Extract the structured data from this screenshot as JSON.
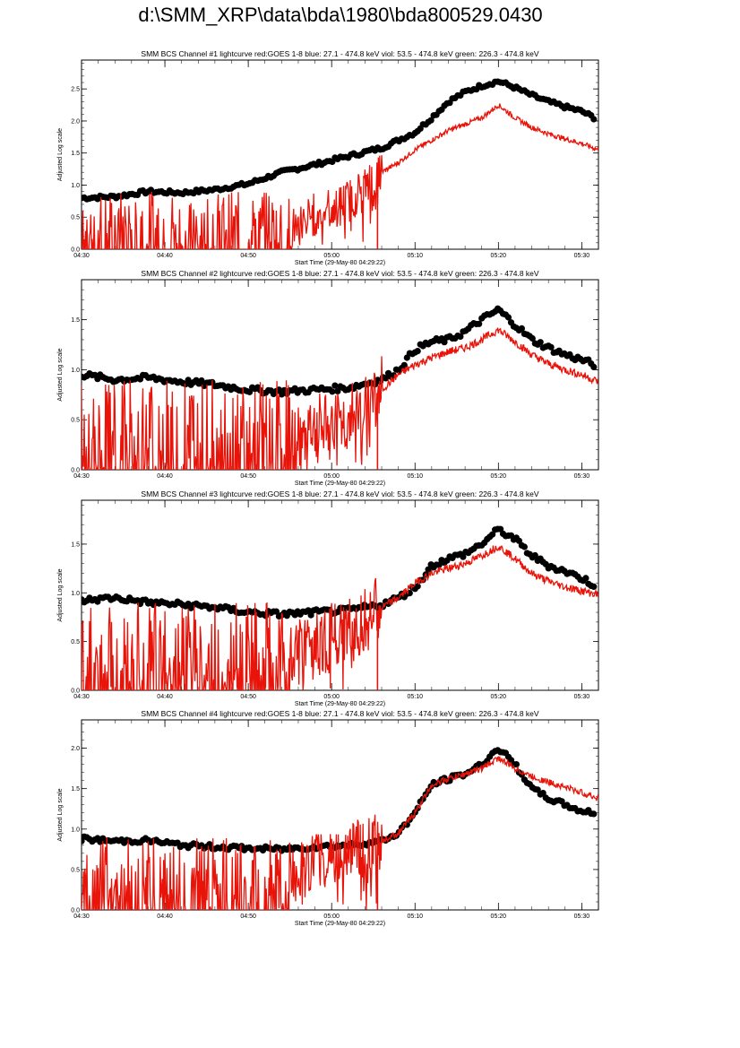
{
  "page": {
    "title": "d:\\SMM_XRP\\data\\bda\\1980\\bda800529.0430"
  },
  "colors": {
    "goes": "#e8140a",
    "bcs": "#000000",
    "axis": "#000000"
  },
  "chart_data": [
    {
      "type": "line",
      "title": "SMM BCS Channel #1 lightcurve  red:GOES 1-8  blue: 27.1 - 474.8 keV  viol: 53.5 - 474.8 keV  green: 226.3 - 474.8 keV",
      "xlabel": "Start Time (29-May-80 04:29:22)",
      "ylabel": "Adjusted Log scale",
      "xlim_min": [
        0,
        62
      ],
      "ylim": [
        0,
        2.95
      ],
      "yticks": [
        0.0,
        0.5,
        1.0,
        1.5,
        2.0,
        2.5
      ],
      "ytick_labels": [
        "0.0",
        "0.5",
        "1.0",
        "1.5",
        "2.0",
        "2.5"
      ],
      "xticks_min": [
        0,
        10,
        20,
        30,
        40,
        50,
        60
      ],
      "xtick_labels": [
        "04:30",
        "04:40",
        "04:50",
        "05:00",
        "05:10",
        "05:20",
        "05:30"
      ],
      "series": [
        {
          "style": "points",
          "color": "#000000",
          "x": [
            0,
            4,
            8,
            12,
            16,
            20,
            24,
            28,
            32,
            36,
            40,
            42,
            44,
            46,
            48,
            50,
            52,
            54,
            56,
            58,
            60,
            61.5
          ],
          "values": [
            0.8,
            0.82,
            0.9,
            0.88,
            0.93,
            1.02,
            1.2,
            1.32,
            1.45,
            1.58,
            1.82,
            2.05,
            2.3,
            2.45,
            2.55,
            2.62,
            2.52,
            2.4,
            2.3,
            2.22,
            2.15,
            2.05
          ]
        },
        {
          "style": "line",
          "color": "#e8140a",
          "x": [
            25,
            28,
            32,
            36,
            38,
            40,
            42,
            44,
            46,
            48,
            50,
            52,
            54,
            56,
            58,
            60,
            62
          ],
          "values": [
            0.3,
            0.55,
            0.75,
            1.2,
            1.35,
            1.55,
            1.7,
            1.85,
            1.95,
            2.05,
            2.25,
            2.05,
            1.9,
            1.8,
            1.72,
            1.65,
            1.55
          ]
        }
      ]
    },
    {
      "type": "line",
      "title": "SMM BCS Channel #2 lightcurve  red:GOES 1-8  blue: 27.1 - 474.8 keV  viol: 53.5 - 474.8 keV  green: 226.3 - 474.8 keV",
      "xlabel": "Start Time (29-May-80 04:29:22)",
      "ylabel": "Adjusted Log scale",
      "xlim_min": [
        0,
        62
      ],
      "ylim": [
        0,
        1.9
      ],
      "yticks": [
        0.0,
        0.5,
        1.0,
        1.5
      ],
      "ytick_labels": [
        "0.0",
        "0.5",
        "1.0",
        "1.5"
      ],
      "xticks_min": [
        0,
        10,
        20,
        30,
        40,
        50,
        60
      ],
      "xtick_labels": [
        "04:30",
        "04:40",
        "04:50",
        "05:00",
        "05:10",
        "05:20",
        "05:30"
      ],
      "series": [
        {
          "style": "points",
          "color": "#000000",
          "x": [
            0,
            4,
            8,
            12,
            16,
            20,
            24,
            28,
            32,
            36,
            38,
            40,
            42,
            44,
            46,
            48,
            50,
            52,
            54,
            56,
            58,
            60,
            61.5
          ],
          "values": [
            0.95,
            0.9,
            0.92,
            0.88,
            0.85,
            0.8,
            0.78,
            0.8,
            0.82,
            0.9,
            1.0,
            1.2,
            1.28,
            1.3,
            1.38,
            1.5,
            1.6,
            1.45,
            1.3,
            1.22,
            1.15,
            1.1,
            1.05
          ]
        },
        {
          "style": "line",
          "color": "#e8140a",
          "x": [
            25,
            28,
            32,
            36,
            38,
            40,
            42,
            44,
            46,
            48,
            50,
            52,
            54,
            56,
            58,
            60,
            62
          ],
          "values": [
            0.25,
            0.4,
            0.5,
            0.8,
            0.95,
            1.05,
            1.12,
            1.18,
            1.22,
            1.3,
            1.4,
            1.28,
            1.15,
            1.06,
            1.0,
            0.95,
            0.88
          ]
        }
      ]
    },
    {
      "type": "line",
      "title": "SMM BCS Channel #3 lightcurve  red:GOES 1-8  blue: 27.1 - 474.8 keV  viol: 53.5 - 474.8 keV  green: 226.3 - 474.8 keV",
      "xlabel": "Start Time (29-May-80 04:29:22)",
      "ylabel": "Adjusted Log scale",
      "xlim_min": [
        0,
        62
      ],
      "ylim": [
        0,
        1.95
      ],
      "yticks": [
        0.0,
        0.5,
        1.0,
        1.5
      ],
      "ytick_labels": [
        "0.0",
        "0.5",
        "1.0",
        "1.5"
      ],
      "xticks_min": [
        0,
        10,
        20,
        30,
        40,
        50,
        60
      ],
      "xtick_labels": [
        "04:30",
        "04:40",
        "04:50",
        "05:00",
        "05:10",
        "05:20",
        "05:30"
      ],
      "series": [
        {
          "style": "points",
          "color": "#000000",
          "x": [
            0,
            4,
            8,
            12,
            16,
            20,
            24,
            28,
            32,
            36,
            38,
            40,
            42,
            44,
            46,
            48,
            50,
            52,
            54,
            56,
            58,
            60,
            61.5
          ],
          "values": [
            0.92,
            0.95,
            0.9,
            0.88,
            0.85,
            0.8,
            0.78,
            0.8,
            0.82,
            0.88,
            0.95,
            1.05,
            1.28,
            1.35,
            1.4,
            1.5,
            1.65,
            1.55,
            1.38,
            1.28,
            1.22,
            1.15,
            1.08
          ]
        },
        {
          "style": "line",
          "color": "#e8140a",
          "x": [
            25,
            28,
            32,
            36,
            38,
            40,
            42,
            44,
            46,
            48,
            50,
            52,
            54,
            56,
            58,
            60,
            62
          ],
          "values": [
            0.3,
            0.5,
            0.6,
            0.85,
            0.95,
            1.1,
            1.2,
            1.25,
            1.3,
            1.38,
            1.48,
            1.35,
            1.2,
            1.12,
            1.06,
            1.02,
            0.98
          ]
        }
      ]
    },
    {
      "type": "line",
      "title": "SMM BCS Channel #4 lightcurve  red:GOES 1-8  blue: 27.1 - 474.8 keV  viol: 53.5 - 474.8 keV  green: 226.3 - 474.8 keV",
      "xlabel": "Start Time (29-May-80 04:29:22)",
      "ylabel": "Adjusted Log scale",
      "xlim_min": [
        0,
        62
      ],
      "ylim": [
        0,
        2.35
      ],
      "yticks": [
        0.0,
        0.5,
        1.0,
        1.5,
        2.0
      ],
      "ytick_labels": [
        "0.0",
        "0.5",
        "1.0",
        "1.5",
        "2.0"
      ],
      "xticks_min": [
        0,
        10,
        20,
        30,
        40,
        50,
        60
      ],
      "xtick_labels": [
        "04:30",
        "04:40",
        "04:50",
        "05:00",
        "05:10",
        "05:20",
        "05:30"
      ],
      "series": [
        {
          "style": "points",
          "color": "#000000",
          "x": [
            0,
            4,
            8,
            12,
            16,
            20,
            24,
            28,
            32,
            36,
            38,
            40,
            42,
            44,
            46,
            48,
            50,
            52,
            54,
            56,
            58,
            60,
            61.5
          ],
          "values": [
            0.88,
            0.85,
            0.86,
            0.8,
            0.78,
            0.76,
            0.75,
            0.78,
            0.8,
            0.85,
            0.95,
            1.2,
            1.55,
            1.62,
            1.68,
            1.8,
            2.0,
            1.8,
            1.5,
            1.38,
            1.3,
            1.22,
            1.2
          ]
        },
        {
          "style": "line",
          "color": "#e8140a",
          "x": [
            25,
            28,
            32,
            36,
            38,
            40,
            42,
            44,
            46,
            48,
            50,
            52,
            54,
            56,
            58,
            60,
            62
          ],
          "values": [
            0.4,
            0.6,
            0.75,
            0.85,
            0.95,
            1.2,
            1.55,
            1.62,
            1.68,
            1.75,
            1.88,
            1.75,
            1.65,
            1.58,
            1.52,
            1.45,
            1.38
          ]
        }
      ]
    }
  ]
}
